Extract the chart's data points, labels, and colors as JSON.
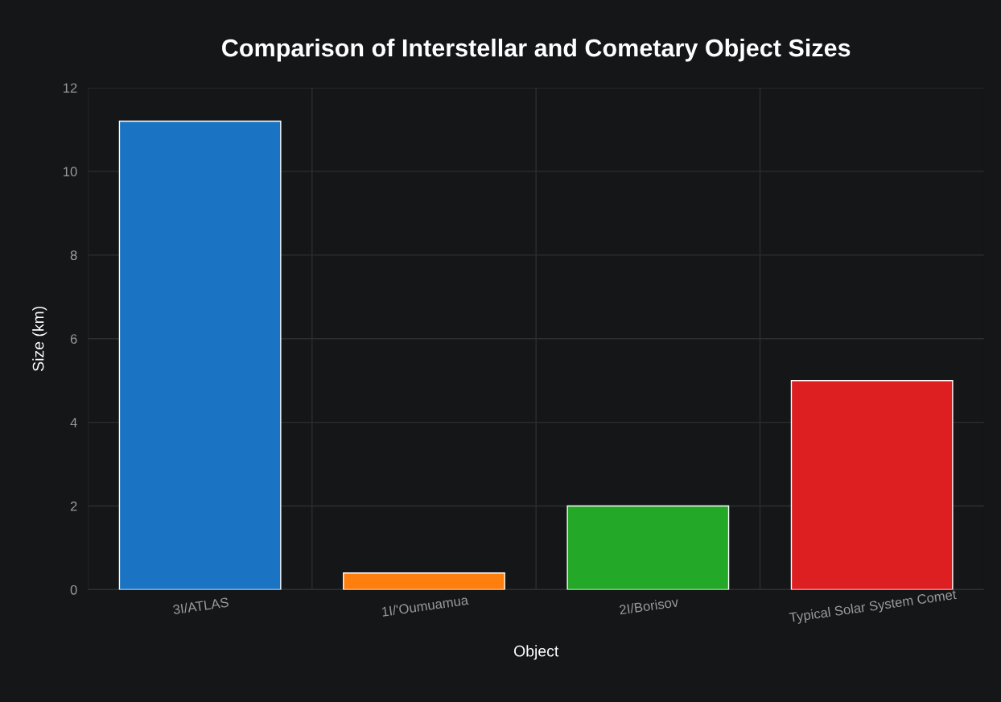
{
  "chart_data": {
    "type": "bar",
    "title": "Comparison of Interstellar and Cometary Object Sizes",
    "xlabel": "Object",
    "ylabel": "Size (km)",
    "categories": [
      "3I/ATLAS",
      "1I/'Oumuamua",
      "2I/Borisov",
      "Typical Solar System Comet"
    ],
    "values": [
      11.2,
      0.4,
      2,
      5
    ],
    "colors": [
      "#1b74c3",
      "#ff7f0e",
      "#23a828",
      "#de1f22"
    ],
    "ylim": [
      0,
      12
    ],
    "yticks": [
      0,
      2,
      4,
      6,
      8,
      10,
      12
    ],
    "grid": true,
    "legend": false
  }
}
